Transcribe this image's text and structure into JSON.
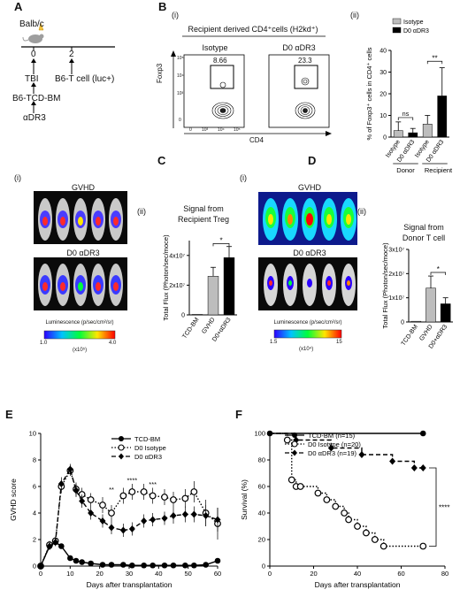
{
  "panelA": {
    "letter": "A",
    "strain": "Balb/c",
    "day0": "0",
    "day2": "2",
    "tbi": "TBI",
    "bm": "B6-TCD-BM",
    "adr3": "αDR3",
    "tcell": "B6-T cell (luc+)"
  },
  "panelB": {
    "letter": "B",
    "sub_i": "(i)",
    "sub_ii": "(ii)",
    "header": "Recipient derived CD4⁺cells (H2kd⁺)",
    "plot1_title": "Isotype",
    "plot2_title": "D0 αDR3",
    "plot1_gate": "8.66",
    "plot2_gate": "23.3",
    "ylabel": "Foxp3",
    "xlabel": "CD4",
    "ticks": [
      "10⁵",
      "10⁴",
      "10³",
      "0",
      "0",
      "10³",
      "10⁴",
      "10⁵"
    ]
  },
  "panelC": {
    "letter": "C",
    "sub_i": "(i)",
    "sub_ii": "(ii)",
    "img1_title": "GVHD",
    "img2_title": "D0 αDR3",
    "scale_label": "Luminescence (p/sec/cm²/sr)",
    "scale_min": "1.0",
    "scale_max": "4.0",
    "scale_unit": "(x10⁵)",
    "chart_title_l1": "Signal from",
    "chart_title_l2": "Recipient Treg"
  },
  "panelD": {
    "letter": "D",
    "sub_i": "(i)",
    "sub_ii": "(ii)",
    "img1_title": "GVHD",
    "img2_title": "D0 αDR3",
    "scale_label": "Luminescence (p/sec/cm²/sr)",
    "scale_min": "1.5",
    "scale_max": "15",
    "scale_unit": "(x10⁴)",
    "chart_title_l1": "Signal from",
    "chart_title_l2": "Donor T cell"
  },
  "panelE": {
    "letter": "E"
  },
  "panelF": {
    "letter": "F"
  },
  "colors": {
    "grey": "#bdbdbd",
    "black": "#000000"
  },
  "chart_data": [
    {
      "id": "B-ii",
      "type": "bar",
      "ylabel": "% of Foxp3⁺ cells in CD4⁺ cells",
      "ylim": [
        0,
        40
      ],
      "yticks": [
        0,
        10,
        20,
        30,
        40
      ],
      "categories": [
        "Isotype",
        "D0 αDR3",
        "Isotype",
        "D0 αDR3"
      ],
      "groups": [
        "Donor",
        "Recipient"
      ],
      "values": [
        3,
        2,
        6,
        19
      ],
      "errors": [
        4,
        2,
        4,
        13
      ],
      "colors": [
        "#bdbdbd",
        "#000000",
        "#bdbdbd",
        "#000000"
      ],
      "legend": [
        "Isotype",
        "D0 αDR3"
      ],
      "legend_position": "top-left",
      "annotations": [
        "ns",
        "**"
      ]
    },
    {
      "id": "C-ii",
      "type": "bar",
      "ylabel": "Total Flux (Photon/sec/moce)",
      "ylim": [
        0,
        50000000
      ],
      "yticks": [
        "0",
        "2x10⁷",
        "4x10⁷"
      ],
      "ytick_values": [
        0,
        20000000,
        40000000
      ],
      "categories": [
        "TCD-BM",
        "GVHD",
        "D0+αDR3"
      ],
      "values": [
        300000,
        26000000,
        38500000
      ],
      "errors": [
        0,
        6000000,
        7500000
      ],
      "colors": [
        "#bdbdbd",
        "#bdbdbd",
        "#000000"
      ],
      "annotations": [
        "*"
      ]
    },
    {
      "id": "D-ii",
      "type": "bar",
      "ylabel": "Total Flux (Photon/sec/moce)",
      "ylim": [
        0,
        30000000
      ],
      "yticks": [
        "0",
        "1x10⁷",
        "2x10⁷",
        "3x10⁷"
      ],
      "ytick_values": [
        0,
        10000000,
        20000000,
        30000000
      ],
      "categories": [
        "TCD-BM",
        "GVHD",
        "D0+αDR3"
      ],
      "values": [
        300000,
        14000000,
        7500000
      ],
      "errors": [
        0,
        5000000,
        2500000
      ],
      "colors": [
        "#bdbdbd",
        "#bdbdbd",
        "#000000"
      ],
      "annotations": [
        "*"
      ]
    },
    {
      "id": "E",
      "type": "line",
      "xlabel": "Days after transplantation",
      "ylabel": "GVHD score",
      "xlim": [
        0,
        60
      ],
      "ylim": [
        0,
        10
      ],
      "xticks": [
        0,
        10,
        20,
        30,
        40,
        50,
        60
      ],
      "yticks": [
        0,
        2,
        4,
        6,
        8,
        10
      ],
      "legend_position": "top-right",
      "series": [
        {
          "name": "TCD-BM",
          "style": "solid",
          "marker": "filled-circle",
          "x": [
            0,
            3,
            5,
            7,
            10,
            12,
            14,
            17,
            21,
            24,
            28,
            31,
            35,
            38,
            42,
            45,
            49,
            52,
            56,
            60
          ],
          "y": [
            0,
            1.5,
            1.8,
            1.5,
            0.6,
            0.4,
            0.3,
            0.2,
            0.1,
            0.1,
            0.1,
            0.05,
            0.05,
            0.05,
            0.05,
            0.05,
            0.05,
            0.05,
            0.1,
            0.4
          ]
        },
        {
          "name": "D0 Isotype",
          "style": "dotted",
          "marker": "open-circle",
          "x": [
            0,
            3,
            5,
            7,
            10,
            12,
            14,
            17,
            21,
            24,
            28,
            31,
            35,
            38,
            42,
            45,
            49,
            52,
            56,
            60
          ],
          "y": [
            0,
            1.6,
            1.9,
            6.0,
            7.2,
            5.8,
            5.4,
            5.0,
            4.6,
            4.0,
            5.3,
            5.6,
            5.6,
            5.3,
            5.2,
            5.0,
            5.1,
            5.6,
            4.0,
            3.2
          ],
          "err": [
            0,
            0.3,
            0.3,
            0.5,
            0.4,
            0.5,
            0.5,
            0.5,
            0.6,
            0.6,
            0.6,
            0.6,
            0.6,
            0.6,
            0.6,
            0.6,
            0.7,
            0.8,
            1.0,
            1.2
          ]
        },
        {
          "name": "D0 αDR3",
          "style": "dashed",
          "marker": "filled-diamond",
          "x": [
            0,
            3,
            5,
            7,
            10,
            12,
            14,
            17,
            21,
            24,
            28,
            31,
            35,
            38,
            42,
            45,
            49,
            52,
            56,
            60
          ],
          "y": [
            0,
            1.5,
            1.8,
            6.2,
            7.3,
            5.7,
            4.9,
            4.0,
            3.4,
            2.9,
            2.7,
            2.8,
            3.4,
            3.5,
            3.6,
            3.8,
            3.9,
            3.9,
            3.8,
            3.5
          ],
          "err": [
            0,
            0.3,
            0.3,
            0.5,
            0.4,
            0.5,
            0.5,
            0.5,
            0.5,
            0.5,
            0.5,
            0.5,
            0.5,
            0.5,
            0.5,
            0.6,
            0.6,
            0.6,
            0.8,
            0.9
          ]
        }
      ],
      "annotations": [
        "**",
        "****",
        "***"
      ]
    },
    {
      "id": "F",
      "type": "line",
      "xlabel": "Days after transplantation",
      "ylabel": "Survival (%)",
      "xlim": [
        0,
        80
      ],
      "ylim": [
        0,
        100
      ],
      "xticks": [
        0,
        20,
        40,
        60,
        80
      ],
      "yticks": [
        0,
        20,
        40,
        60,
        80,
        100
      ],
      "legend_position": "top",
      "series": [
        {
          "name": "TCD-BM (n=15)",
          "style": "solid",
          "marker": "filled-circle",
          "x": [
            0,
            70
          ],
          "y": [
            100,
            100
          ]
        },
        {
          "name": "D0 Isotype (n=20)",
          "style": "dotted",
          "marker": "open-circle",
          "x": [
            0,
            8,
            10,
            12,
            14,
            22,
            26,
            30,
            34,
            36,
            40,
            44,
            48,
            52,
            56,
            70
          ],
          "y": [
            100,
            95,
            65,
            60,
            60,
            55,
            50,
            45,
            40,
            35,
            30,
            25,
            20,
            15,
            15,
            15
          ]
        },
        {
          "name": "D0 αDR3 (n=19)",
          "style": "dashed",
          "marker": "filled-diamond",
          "x": [
            0,
            12,
            28,
            42,
            56,
            66,
            70
          ],
          "y": [
            100,
            95,
            89,
            84,
            79,
            74,
            74
          ]
        }
      ],
      "annotations": [
        "****"
      ]
    }
  ]
}
